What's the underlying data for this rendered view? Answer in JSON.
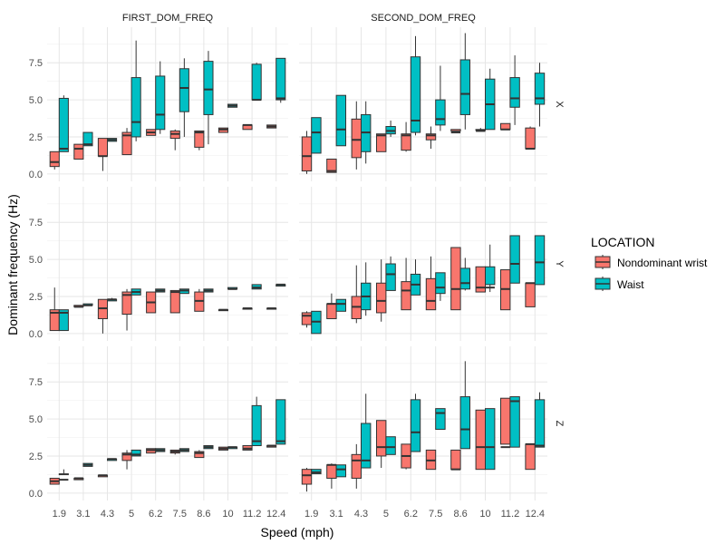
{
  "chart_data": {
    "type": "box",
    "xlabel": "Speed (mph)",
    "ylabel": "Dominant frequency (Hz)",
    "categories": [
      "1.9",
      "3.1",
      "4.3",
      "5",
      "6.2",
      "7.5",
      "8.6",
      "10",
      "11.2",
      "12.4"
    ],
    "yticks": [
      "0.0",
      "2.5",
      "5.0",
      "7.5"
    ],
    "ylim": [
      -0.5,
      9.9
    ],
    "grid": true,
    "legend": {
      "title": "LOCATION",
      "position": "right",
      "entries": [
        {
          "name": "Nondominant wrist",
          "color": "#F8766D"
        },
        {
          "name": "Waist",
          "color": "#00BFC4"
        }
      ]
    },
    "facet_columns": [
      "FIRST_DOM_FREQ",
      "SECOND_DOM_FREQ"
    ],
    "facet_rows": [
      "X",
      "Y",
      "Z"
    ],
    "panels": [
      {
        "col": "FIRST_DOM_FREQ",
        "row": "X",
        "series": [
          {
            "name": "Nondominant wrist",
            "boxes": [
              [
                0.3,
                0.5,
                0.8,
                1.5,
                1.5
              ],
              [
                1.0,
                1.0,
                1.7,
                2.0,
                2.0
              ],
              [
                0.2,
                1.2,
                1.2,
                2.4,
                2.4
              ],
              [
                1.3,
                1.3,
                2.6,
                2.8,
                3.1
              ],
              [
                2.6,
                2.6,
                2.8,
                3.0,
                3.0
              ],
              [
                1.6,
                2.4,
                2.7,
                2.9,
                3.0
              ],
              [
                1.6,
                1.8,
                2.8,
                2.9,
                2.9
              ],
              [
                2.8,
                2.8,
                3.0,
                3.1,
                3.1
              ],
              [
                3.0,
                3.0,
                3.3,
                3.3,
                3.3
              ],
              [
                3.1,
                3.1,
                3.2,
                3.3,
                3.3
              ]
            ]
          },
          {
            "name": "Waist",
            "boxes": [
              [
                1.5,
                1.5,
                1.7,
                5.1,
                5.3
              ],
              [
                1.9,
                1.9,
                2.0,
                2.8,
                2.8
              ],
              [
                2.2,
                2.2,
                2.3,
                2.4,
                2.4
              ],
              [
                2.2,
                2.5,
                3.5,
                6.5,
                9.0
              ],
              [
                2.7,
                3.0,
                4.0,
                6.6,
                7.6
              ],
              [
                2.5,
                4.2,
                5.8,
                7.1,
                7.8
              ],
              [
                2.0,
                4.0,
                5.7,
                7.6,
                8.3
              ],
              [
                4.5,
                4.5,
                4.6,
                4.7,
                4.7
              ],
              [
                5.0,
                5.0,
                5.0,
                7.4,
                7.5
              ],
              [
                4.8,
                5.0,
                5.1,
                7.8,
                7.8
              ]
            ]
          }
        ]
      },
      {
        "col": "SECOND_DOM_FREQ",
        "row": "X",
        "series": [
          {
            "name": "Nondominant wrist",
            "boxes": [
              [
                0.0,
                0.2,
                1.2,
                2.5,
                2.9
              ],
              [
                0.1,
                0.1,
                0.2,
                1.0,
                1.0
              ],
              [
                0.3,
                1.1,
                2.3,
                3.7,
                4.9
              ],
              [
                1.5,
                1.5,
                2.6,
                2.7,
                2.7
              ],
              [
                1.5,
                1.6,
                2.6,
                2.7,
                3.5
              ],
              [
                1.7,
                2.3,
                2.6,
                2.7,
                3.2
              ],
              [
                2.9,
                2.9,
                2.8,
                3.0,
                3.0
              ],
              [
                3.0,
                3.0,
                2.9,
                3.0,
                3.1
              ],
              [
                3.0,
                3.0,
                3.0,
                3.4,
                3.4
              ],
              [
                1.7,
                1.7,
                1.7,
                3.1,
                3.2
              ]
            ]
          },
          {
            "name": "Waist",
            "boxes": [
              [
                1.4,
                1.4,
                2.8,
                3.8,
                3.8
              ],
              [
                1.9,
                1.9,
                3.0,
                5.3,
                5.3
              ],
              [
                0.7,
                1.5,
                2.8,
                4.0,
                4.9
              ],
              [
                2.5,
                2.7,
                2.9,
                3.2,
                3.6
              ],
              [
                2.6,
                2.8,
                3.6,
                7.9,
                9.3
              ],
              [
                2.9,
                3.3,
                3.7,
                5.0,
                7.3
              ],
              [
                3.0,
                4.0,
                5.4,
                7.7,
                9.5
              ],
              [
                3.0,
                3.0,
                4.7,
                6.4,
                7.1
              ],
              [
                3.3,
                4.5,
                5.1,
                6.5,
                8.0
              ],
              [
                3.2,
                4.7,
                5.1,
                6.8,
                7.5
              ]
            ]
          }
        ]
      },
      {
        "col": "FIRST_DOM_FREQ",
        "row": "Y",
        "series": [
          {
            "name": "Nondominant wrist",
            "boxes": [
              [
                0.2,
                0.2,
                1.4,
                1.6,
                3.1
              ],
              [
                1.8,
                1.8,
                1.8,
                1.9,
                1.9
              ],
              [
                0.0,
                1.0,
                1.7,
                2.3,
                2.3
              ],
              [
                0.2,
                1.3,
                2.6,
                2.8,
                3.0
              ],
              [
                1.4,
                1.4,
                2.1,
                2.8,
                2.8
              ],
              [
                1.4,
                1.4,
                2.8,
                2.9,
                2.9
              ],
              [
                1.5,
                1.5,
                2.2,
                2.8,
                3.0
              ],
              [
                1.6,
                1.6,
                1.6,
                1.6,
                1.6
              ],
              [
                1.7,
                1.7,
                1.7,
                1.7,
                1.7
              ],
              [
                1.7,
                1.7,
                1.7,
                1.7,
                1.7
              ]
            ]
          },
          {
            "name": "Waist",
            "boxes": [
              [
                0.2,
                0.2,
                1.4,
                1.6,
                1.6
              ],
              [
                1.9,
                1.9,
                1.9,
                2.0,
                2.0
              ],
              [
                2.2,
                2.2,
                2.3,
                2.3,
                2.4
              ],
              [
                2.6,
                2.6,
                2.8,
                3.0,
                3.0
              ],
              [
                2.8,
                2.8,
                2.9,
                3.0,
                3.0
              ],
              [
                2.7,
                2.7,
                2.9,
                3.0,
                3.0
              ],
              [
                2.8,
                2.8,
                2.9,
                3.0,
                3.0
              ],
              [
                3.0,
                3.0,
                3.0,
                3.1,
                3.1
              ],
              [
                3.0,
                3.0,
                3.1,
                3.3,
                3.3
              ],
              [
                3.2,
                3.2,
                3.3,
                3.3,
                3.3
              ]
            ]
          }
        ]
      },
      {
        "col": "SECOND_DOM_FREQ",
        "row": "Y",
        "series": [
          {
            "name": "Nondominant wrist",
            "boxes": [
              [
                0.4,
                0.6,
                1.2,
                1.4,
                1.5
              ],
              [
                1.0,
                1.0,
                2.0,
                2.0,
                2.7
              ],
              [
                0.7,
                1.0,
                1.8,
                2.5,
                4.6
              ],
              [
                0.8,
                1.4,
                2.2,
                3.4,
                5.0
              ],
              [
                1.6,
                1.6,
                2.9,
                3.5,
                5.1
              ],
              [
                1.6,
                1.6,
                2.2,
                3.7,
                5.2
              ],
              [
                1.6,
                1.6,
                3.0,
                5.8,
                5.8
              ],
              [
                2.8,
                2.8,
                3.1,
                4.5,
                4.5
              ],
              [
                1.6,
                1.6,
                3.0,
                4.3,
                4.3
              ],
              [
                1.8,
                1.8,
                3.4,
                3.4,
                3.4
              ]
            ]
          },
          {
            "name": "Waist",
            "boxes": [
              [
                0.0,
                0.0,
                0.8,
                1.5,
                1.5
              ],
              [
                1.5,
                1.5,
                2.0,
                2.3,
                2.3
              ],
              [
                1.2,
                1.6,
                2.5,
                3.4,
                4.8
              ],
              [
                3.0,
                2.9,
                4.0,
                4.7,
                5.2
              ],
              [
                2.6,
                2.6,
                3.3,
                4.0,
                5.0
              ],
              [
                2.2,
                2.7,
                3.1,
                4.1,
                4.1
              ],
              [
                2.9,
                3.0,
                3.4,
                4.4,
                5.1
              ],
              [
                2.8,
                3.3,
                3.1,
                4.5,
                6.0
              ],
              [
                3.4,
                3.4,
                4.7,
                6.6,
                6.6
              ],
              [
                3.3,
                3.3,
                4.8,
                6.6,
                6.6
              ]
            ]
          }
        ]
      },
      {
        "col": "FIRST_DOM_FREQ",
        "row": "Z",
        "series": [
          {
            "name": "Nondominant wrist",
            "boxes": [
              [
                0.6,
                0.6,
                0.8,
                1.0,
                1.0
              ],
              [
                0.9,
                0.9,
                1.0,
                1.0,
                1.0
              ],
              [
                1.1,
                1.1,
                1.2,
                1.2,
                1.2
              ],
              [
                1.6,
                2.2,
                2.6,
                2.7,
                2.9
              ],
              [
                2.7,
                2.7,
                2.9,
                3.0,
                3.0
              ],
              [
                2.6,
                2.7,
                2.8,
                2.9,
                2.9
              ],
              [
                2.4,
                2.4,
                2.7,
                2.8,
                2.9
              ],
              [
                2.9,
                2.9,
                3.0,
                3.1,
                3.1
              ],
              [
                2.9,
                2.9,
                3.0,
                3.2,
                3.2
              ],
              [
                3.1,
                3.1,
                3.2,
                3.2,
                3.2
              ]
            ]
          },
          {
            "name": "Waist",
            "boxes": [
              [
                1.3,
                1.3,
                0.9,
                1.3,
                1.6
              ],
              [
                1.8,
                1.8,
                1.9,
                2.0,
                2.0
              ],
              [
                2.2,
                2.2,
                2.3,
                2.3,
                2.3
              ],
              [
                2.5,
                2.5,
                2.6,
                2.9,
                2.9
              ],
              [
                2.8,
                2.8,
                2.9,
                3.0,
                3.0
              ],
              [
                2.8,
                2.8,
                2.9,
                3.0,
                3.0
              ],
              [
                3.0,
                3.0,
                3.1,
                3.2,
                3.2
              ],
              [
                3.0,
                3.0,
                3.1,
                3.1,
                3.1
              ],
              [
                3.2,
                3.2,
                3.5,
                5.9,
                6.5
              ],
              [
                3.3,
                3.3,
                3.5,
                6.3,
                6.3
              ]
            ]
          }
        ]
      },
      {
        "col": "SECOND_DOM_FREQ",
        "row": "Z",
        "series": [
          {
            "name": "Nondominant wrist",
            "boxes": [
              [
                0.1,
                0.6,
                1.2,
                1.6,
                1.7
              ],
              [
                0.3,
                1.0,
                1.9,
                1.9,
                2.0
              ],
              [
                0.3,
                1.0,
                2.2,
                2.6,
                3.3
              ],
              [
                1.7,
                2.5,
                3.1,
                4.9,
                4.9
              ],
              [
                1.6,
                1.7,
                2.5,
                3.3,
                3.3
              ],
              [
                1.6,
                1.6,
                2.2,
                2.9,
                2.9
              ],
              [
                1.6,
                1.6,
                1.6,
                2.9,
                2.9
              ],
              [
                1.6,
                1.6,
                3.1,
                5.6,
                5.6
              ],
              [
                3.3,
                3.3,
                3.1,
                6.4,
                6.4
              ],
              [
                1.6,
                1.6,
                3.3,
                3.3,
                3.3
              ]
            ]
          },
          {
            "name": "Waist",
            "boxes": [
              [
                1.3,
                1.3,
                1.4,
                1.6,
                1.6
              ],
              [
                1.1,
                1.1,
                1.6,
                1.9,
                1.9
              ],
              [
                1.7,
                1.7,
                2.2,
                4.7,
                6.7
              ],
              [
                2.6,
                2.6,
                3.1,
                3.8,
                3.8
              ],
              [
                2.8,
                2.8,
                4.1,
                6.3,
                6.7
              ],
              [
                4.3,
                4.3,
                5.4,
                5.7,
                5.7
              ],
              [
                3.0,
                3.0,
                4.3,
                6.5,
                8.9
              ],
              [
                1.6,
                1.6,
                3.1,
                5.7,
                5.7
              ],
              [
                3.1,
                3.1,
                6.2,
                6.5,
                6.5
              ],
              [
                3.1,
                3.1,
                3.2,
                6.3,
                6.8
              ]
            ]
          }
        ]
      }
    ]
  }
}
